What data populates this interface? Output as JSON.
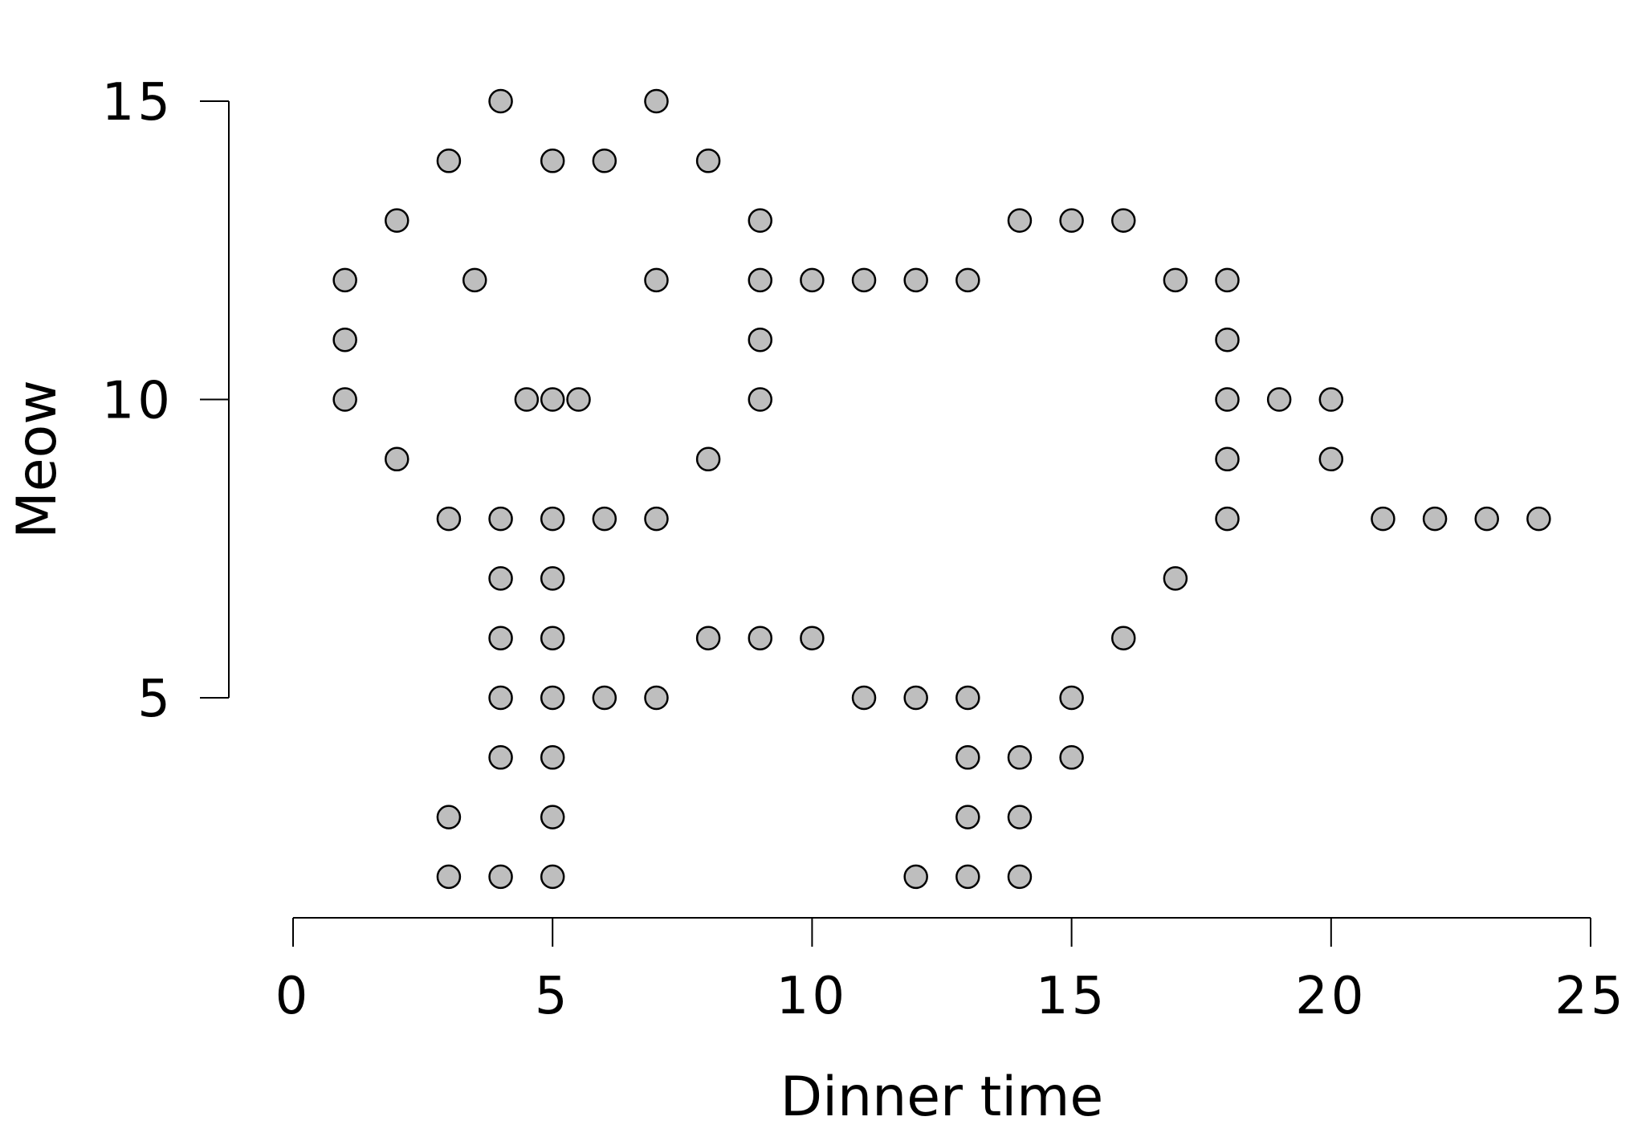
{
  "chart_data": {
    "type": "scatter",
    "title": "",
    "xlabel": "Dinner time",
    "ylabel": "Meow",
    "xlim": [
      0,
      25
    ],
    "ylim": [
      2,
      15
    ],
    "xticks": [
      "0",
      "5",
      "10",
      "15",
      "20",
      "25"
    ],
    "yticks": [
      "5",
      "10",
      "15"
    ],
    "grid": false,
    "point_color": "#bebebe",
    "point_edge_color": "#000000",
    "points": [
      [
        4,
        15
      ],
      [
        7,
        15
      ],
      [
        3,
        14
      ],
      [
        5,
        14
      ],
      [
        6,
        14
      ],
      [
        8,
        14
      ],
      [
        2,
        13
      ],
      [
        9,
        13
      ],
      [
        14,
        13
      ],
      [
        15,
        13
      ],
      [
        16,
        13
      ],
      [
        1,
        12
      ],
      [
        3.5,
        12
      ],
      [
        7,
        12
      ],
      [
        9,
        12
      ],
      [
        10,
        12
      ],
      [
        11,
        12
      ],
      [
        12,
        12
      ],
      [
        13,
        12
      ],
      [
        17,
        12
      ],
      [
        18,
        12
      ],
      [
        1,
        11
      ],
      [
        9,
        11
      ],
      [
        18,
        11
      ],
      [
        1,
        10
      ],
      [
        4.5,
        10
      ],
      [
        5,
        10
      ],
      [
        5.5,
        10
      ],
      [
        9,
        10
      ],
      [
        18,
        10
      ],
      [
        19,
        10
      ],
      [
        20,
        10
      ],
      [
        2,
        9
      ],
      [
        8,
        9
      ],
      [
        18,
        9
      ],
      [
        20,
        9
      ],
      [
        3,
        8
      ],
      [
        4,
        8
      ],
      [
        5,
        8
      ],
      [
        6,
        8
      ],
      [
        7,
        8
      ],
      [
        18,
        8
      ],
      [
        21,
        8
      ],
      [
        22,
        8
      ],
      [
        23,
        8
      ],
      [
        24,
        8
      ],
      [
        4,
        7
      ],
      [
        5,
        7
      ],
      [
        17,
        7
      ],
      [
        4,
        6
      ],
      [
        5,
        6
      ],
      [
        8,
        6
      ],
      [
        9,
        6
      ],
      [
        10,
        6
      ],
      [
        16,
        6
      ],
      [
        4,
        5
      ],
      [
        5,
        5
      ],
      [
        6,
        5
      ],
      [
        7,
        5
      ],
      [
        11,
        5
      ],
      [
        12,
        5
      ],
      [
        13,
        5
      ],
      [
        15,
        5
      ],
      [
        4,
        4
      ],
      [
        5,
        4
      ],
      [
        13,
        4
      ],
      [
        14,
        4
      ],
      [
        15,
        4
      ],
      [
        3,
        3
      ],
      [
        5,
        3
      ],
      [
        13,
        3
      ],
      [
        14,
        3
      ],
      [
        3,
        2
      ],
      [
        4,
        2
      ],
      [
        5,
        2
      ],
      [
        12,
        2
      ],
      [
        13,
        2
      ],
      [
        14,
        2
      ]
    ]
  }
}
